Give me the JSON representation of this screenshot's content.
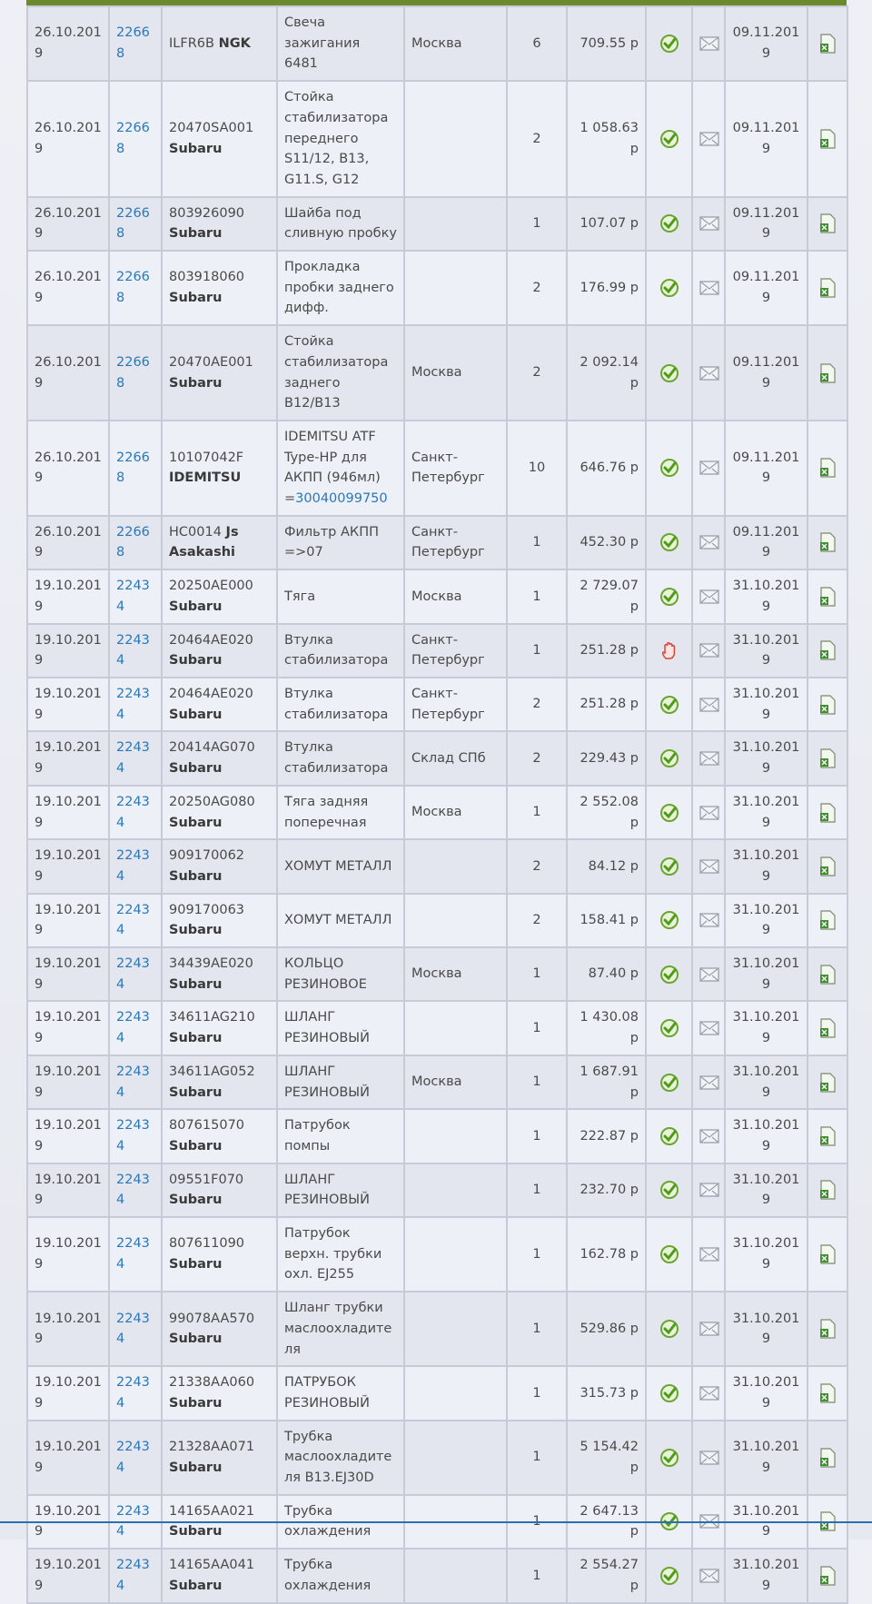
{
  "table": {
    "rows": [
      {
        "date": "26.10.2019",
        "order": "22668",
        "part": "ILFR6B",
        "brand": "NGK",
        "name": "Свеча зажигания 6481",
        "city": "Москва",
        "qty": 6,
        "price": "709.55 р",
        "status": "ok",
        "delivery": "09.11.2019"
      },
      {
        "date": "26.10.2019",
        "order": "22668",
        "part": "20470SA001",
        "brand": "Subaru",
        "name": "Стойка стабилизатора переднего S11/12, B13, G11.S, G12",
        "qty": 2,
        "price": "1 058.63 р",
        "status": "ok",
        "delivery": "09.11.2019"
      },
      {
        "date": "26.10.2019",
        "order": "22668",
        "part": "803926090",
        "brand": "Subaru",
        "name": "Шайба под сливную пробку",
        "qty": 1,
        "price": "107.07 р",
        "status": "ok",
        "delivery": "09.11.2019"
      },
      {
        "date": "26.10.2019",
        "order": "22668",
        "part": "803918060",
        "brand": "Subaru",
        "name": "Прокладка пробки заднего дифф.",
        "qty": 2,
        "price": "176.99 р",
        "status": "ok",
        "delivery": "09.11.2019"
      },
      {
        "date": "26.10.2019",
        "order": "22668",
        "part": "20470AE001",
        "brand": "Subaru",
        "name": "Стойка стабилизатора заднего B12/B13",
        "city": "Москва",
        "qty": 2,
        "price": "2 092.14 р",
        "status": "ok",
        "delivery": "09.11.2019"
      },
      {
        "date": "26.10.2019",
        "order": "22668",
        "part": "10107042F",
        "brand": "IDEMITSU",
        "name": "IDEMITSU ATF Type-HP для АКПП (946мл) =",
        "name_link": "30040099750",
        "city": "Санкт-Петербург",
        "qty": 10,
        "price": "646.76 р",
        "status": "ok",
        "delivery": "09.11.2019"
      },
      {
        "date": "26.10.2019",
        "order": "22668",
        "part": "HC0014",
        "brand": "Js Asakashi",
        "name": "Фильтр АКПП =>07",
        "city": "Санкт-Петербург",
        "qty": 1,
        "price": "452.30 р",
        "status": "ok",
        "delivery": "09.11.2019"
      },
      {
        "date": "19.10.2019",
        "order": "22434",
        "part": "20250AE000",
        "brand": "Subaru",
        "name": "Тяга",
        "city": "Москва",
        "qty": 1,
        "price": "2 729.07 р",
        "status": "ok",
        "delivery": "31.10.2019"
      },
      {
        "date": "19.10.2019",
        "order": "22434",
        "part": "20464AE020",
        "brand": "Subaru",
        "name": "Втулка стабилизатора",
        "city": "Санкт-Петербург",
        "qty": 1,
        "price": "251.28 р",
        "status": "hold",
        "delivery": "31.10.2019"
      },
      {
        "date": "19.10.2019",
        "order": "22434",
        "part": "20464AE020",
        "brand": "Subaru",
        "name": "Втулка стабилизатора",
        "city": "Санкт-Петербург",
        "qty": 2,
        "price": "251.28 р",
        "status": "ok",
        "delivery": "31.10.2019"
      },
      {
        "date": "19.10.2019",
        "order": "22434",
        "part": "20414AG070",
        "brand": "Subaru",
        "name": "Втулка стабилизатора",
        "city": "Склад СПб",
        "qty": 2,
        "price": "229.43 р",
        "status": "ok",
        "delivery": "31.10.2019"
      },
      {
        "date": "19.10.2019",
        "order": "22434",
        "part": "20250AG080",
        "brand": "Subaru",
        "name": "Тяга задняя поперечная",
        "city": "Москва",
        "qty": 1,
        "price": "2 552.08 р",
        "status": "ok",
        "delivery": "31.10.2019"
      },
      {
        "date": "19.10.2019",
        "order": "22434",
        "part": "909170062",
        "brand": "Subaru",
        "name": "ХОМУТ МЕТАЛЛ",
        "qty": 2,
        "price": "84.12 р",
        "status": "ok",
        "delivery": "31.10.2019"
      },
      {
        "date": "19.10.2019",
        "order": "22434",
        "part": "909170063",
        "brand": "Subaru",
        "name": "ХОМУТ МЕТАЛЛ",
        "qty": 2,
        "price": "158.41 р",
        "status": "ok",
        "delivery": "31.10.2019"
      },
      {
        "date": "19.10.2019",
        "order": "22434",
        "part": "34439AE020",
        "brand": "Subaru",
        "name": "КОЛЬЦО РЕЗИНОВОЕ",
        "city": "Москва",
        "qty": 1,
        "price": "87.40 р",
        "status": "ok",
        "delivery": "31.10.2019"
      },
      {
        "date": "19.10.2019",
        "order": "22434",
        "part": "34611AG210",
        "brand": "Subaru",
        "name": "ШЛАНГ РЕЗИНОВЫЙ",
        "qty": 1,
        "price": "1 430.08 р",
        "status": "ok",
        "delivery": "31.10.2019"
      },
      {
        "date": "19.10.2019",
        "order": "22434",
        "part": "34611AG052",
        "brand": "Subaru",
        "name": "ШЛАНГ РЕЗИНОВЫЙ",
        "city": "Москва",
        "qty": 1,
        "price": "1 687.91 р",
        "status": "ok",
        "delivery": "31.10.2019"
      },
      {
        "date": "19.10.2019",
        "order": "22434",
        "part": "807615070",
        "brand": "Subaru",
        "name": "Патрубок помпы",
        "qty": 1,
        "price": "222.87 р",
        "status": "ok",
        "delivery": "31.10.2019"
      },
      {
        "date": "19.10.2019",
        "order": "22434",
        "part": "09551F070",
        "brand": "Subaru",
        "name": "ШЛАНГ РЕЗИНОВЫЙ",
        "qty": 1,
        "price": "232.70 р",
        "status": "ok",
        "delivery": "31.10.2019"
      },
      {
        "date": "19.10.2019",
        "order": "22434",
        "part": "807611090",
        "brand": "Subaru",
        "name": "Патрубок верхн. трубки охл. EJ255",
        "qty": 1,
        "price": "162.78 р",
        "status": "ok",
        "delivery": "31.10.2019"
      },
      {
        "date": "19.10.2019",
        "order": "22434",
        "part": "99078AA570",
        "brand": "Subaru",
        "name": "Шланг трубки маслоохладителя",
        "qty": 1,
        "price": "529.86 р",
        "status": "ok",
        "delivery": "31.10.2019"
      },
      {
        "date": "19.10.2019",
        "order": "22434",
        "part": "21338AA060",
        "brand": "Subaru",
        "name": "ПАТРУБОК РЕЗИНОВЫЙ",
        "qty": 1,
        "price": "315.73 р",
        "status": "ok",
        "delivery": "31.10.2019"
      },
      {
        "date": "19.10.2019",
        "order": "22434",
        "part": "21328AA071",
        "brand": "Subaru",
        "name": "Трубка маслоохладителя B13.EJ30D",
        "qty": 1,
        "price": "5 154.42 р",
        "status": "ok",
        "delivery": "31.10.2019"
      },
      {
        "date": "19.10.2019",
        "order": "22434",
        "part": "14165AA021",
        "brand": "Subaru",
        "name": "Трубка охлаждения",
        "qty": 1,
        "price": "2 647.13 р",
        "status": "ok",
        "delivery": "31.10.2019"
      },
      {
        "date": "19.10.2019",
        "order": "22434",
        "part": "14165AA041",
        "brand": "Subaru",
        "name": "Трубка охлаждения",
        "qty": 1,
        "price": "2 554.27 р",
        "status": "ok",
        "delivery": "31.10.2019"
      }
    ]
  }
}
